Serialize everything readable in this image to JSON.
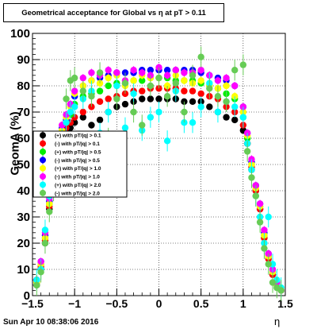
{
  "title": "Geometrical acceptance for Global vs  η at pT > 0.11",
  "datestamp": "Sun Apr 10 08:38:06 2016",
  "chart_data": {
    "type": "scatter",
    "title": "Geometrical acceptance for Global vs  η at pT > 0.11",
    "xlabel": "η",
    "ylabel": "GeomA (%)",
    "xlim": [
      -1.5,
      1.5
    ],
    "ylim": [
      0,
      100
    ],
    "xticks": [
      "−1.5",
      "−1",
      "−0.5",
      "0",
      "0.5",
      "1",
      "1.5"
    ],
    "xtick_values": [
      -1.5,
      -1,
      -0.5,
      0,
      0.5,
      1,
      1.5
    ],
    "yticks": [
      "0",
      "10",
      "20",
      "30",
      "40",
      "50",
      "60",
      "70",
      "80",
      "90",
      "100"
    ],
    "ytick_values": [
      0,
      10,
      20,
      30,
      40,
      50,
      60,
      70,
      80,
      90,
      100
    ],
    "grid": true,
    "legend_position": "left-middle",
    "series": [
      {
        "name": "(+) with pT/|q| > 0.1",
        "color": "#000000",
        "err": 1.0,
        "x": [
          -1.45,
          -1.4,
          -1.35,
          -1.3,
          -1.25,
          -1.2,
          -1.15,
          -1.1,
          -1.05,
          -1.0,
          -0.9,
          -0.8,
          -0.7,
          -0.6,
          -0.5,
          -0.4,
          -0.3,
          -0.2,
          -0.1,
          0.0,
          0.1,
          0.2,
          0.3,
          0.4,
          0.5,
          0.6,
          0.7,
          0.8,
          0.9,
          1.0,
          1.05,
          1.1,
          1.15,
          1.2,
          1.25,
          1.3,
          1.35,
          1.4,
          1.45
        ],
        "y": [
          4,
          10,
          20,
          33,
          45,
          55,
          60,
          63,
          64,
          66,
          68,
          65,
          67,
          70,
          72,
          73,
          74,
          75,
          75,
          75,
          75,
          75,
          74,
          74,
          74,
          72,
          70,
          68,
          67,
          63,
          58,
          48,
          40,
          33,
          22,
          15,
          8,
          4,
          2
        ]
      },
      {
        "name": "(-) with pT/|q| > 0.1",
        "color": "#ff0000",
        "err": 1.0,
        "x": [
          -1.45,
          -1.4,
          -1.35,
          -1.3,
          -1.25,
          -1.2,
          -1.15,
          -1.1,
          -1.05,
          -1.0,
          -0.9,
          -0.8,
          -0.7,
          -0.6,
          -0.5,
          -0.4,
          -0.3,
          -0.2,
          -0.1,
          0.0,
          0.1,
          0.2,
          0.3,
          0.4,
          0.5,
          0.6,
          0.7,
          0.8,
          0.9,
          1.0,
          1.05,
          1.1,
          1.15,
          1.2,
          1.25,
          1.3,
          1.35,
          1.4,
          1.45
        ],
        "y": [
          5,
          11,
          21,
          34,
          46,
          56,
          61,
          64,
          66,
          68,
          70,
          72,
          74,
          75,
          76,
          77,
          78,
          78,
          79,
          79,
          79,
          79,
          78,
          78,
          77,
          76,
          75,
          72,
          70,
          65,
          58,
          49,
          40,
          33,
          22,
          14,
          8,
          4,
          2
        ]
      },
      {
        "name": "(+) with pT/|q| > 0.5",
        "color": "#00ee00",
        "err": 1.0,
        "x": [
          -1.45,
          -1.4,
          -1.35,
          -1.3,
          -1.25,
          -1.2,
          -1.15,
          -1.1,
          -1.05,
          -1.0,
          -0.9,
          -0.8,
          -0.7,
          -0.6,
          -0.5,
          -0.4,
          -0.3,
          -0.2,
          -0.1,
          0.0,
          0.1,
          0.2,
          0.3,
          0.4,
          0.5,
          0.6,
          0.7,
          0.8,
          0.9,
          1.0,
          1.05,
          1.1,
          1.15,
          1.2,
          1.25,
          1.3,
          1.35,
          1.4,
          1.45
        ],
        "y": [
          5,
          12,
          22,
          35,
          48,
          58,
          62,
          66,
          69,
          73,
          76,
          77,
          78,
          80,
          81,
          81,
          82,
          82,
          83,
          83,
          83,
          82,
          82,
          82,
          81,
          80,
          79,
          77,
          75,
          68,
          60,
          50,
          42,
          34,
          23,
          15,
          9,
          5,
          2
        ]
      },
      {
        "name": "(-) with pT/|q| > 0.5",
        "color": "#0000ff",
        "err": 1.0,
        "x": [
          -1.45,
          -1.4,
          -1.35,
          -1.3,
          -1.25,
          -1.2,
          -1.15,
          -1.1,
          -1.05,
          -1.0,
          -0.9,
          -0.8,
          -0.7,
          -0.6,
          -0.5,
          -0.4,
          -0.3,
          -0.2,
          -0.1,
          0.0,
          0.1,
          0.2,
          0.3,
          0.4,
          0.5,
          0.6,
          0.7,
          0.8,
          0.9,
          1.0,
          1.05,
          1.1,
          1.15,
          1.2,
          1.25,
          1.3,
          1.35,
          1.4,
          1.45
        ],
        "y": [
          6,
          13,
          23,
          36,
          49,
          59,
          64,
          67,
          70,
          76,
          80,
          82,
          83,
          84,
          85,
          85,
          85,
          86,
          86,
          86,
          86,
          86,
          86,
          86,
          85,
          84,
          83,
          82,
          80,
          72,
          62,
          51,
          42,
          35,
          24,
          16,
          9,
          5,
          2
        ]
      },
      {
        "name": "(+) with pT/|q| > 1.0",
        "color": "#ffff00",
        "err": 1.5,
        "x": [
          -1.45,
          -1.4,
          -1.35,
          -1.3,
          -1.25,
          -1.2,
          -1.15,
          -1.1,
          -1.05,
          -1.0,
          -0.9,
          -0.8,
          -0.7,
          -0.6,
          -0.5,
          -0.4,
          -0.3,
          -0.2,
          -0.1,
          0.0,
          0.1,
          0.2,
          0.3,
          0.4,
          0.5,
          0.6,
          0.7,
          0.8,
          0.9,
          1.0,
          1.05,
          1.1,
          1.15,
          1.2,
          1.25,
          1.3,
          1.35,
          1.4,
          1.45
        ],
        "y": [
          5,
          12,
          22,
          35,
          47,
          57,
          63,
          68,
          72,
          77,
          80,
          82,
          81,
          83,
          84,
          80,
          82,
          84,
          83,
          83,
          80,
          84,
          82,
          81,
          82,
          80,
          79,
          80,
          76,
          70,
          61,
          50,
          41,
          34,
          23,
          15,
          9,
          4,
          2
        ]
      },
      {
        "name": "(-) with pT/|q| > 1.0",
        "color": "#ff00ff",
        "err": 1.5,
        "x": [
          -1.45,
          -1.4,
          -1.35,
          -1.3,
          -1.25,
          -1.2,
          -1.15,
          -1.1,
          -1.05,
          -1.0,
          -0.9,
          -0.8,
          -0.7,
          -0.6,
          -0.5,
          -0.4,
          -0.3,
          -0.2,
          -0.1,
          0.0,
          0.1,
          0.2,
          0.3,
          0.4,
          0.5,
          0.6,
          0.7,
          0.8,
          0.9,
          1.0,
          1.05,
          1.1,
          1.15,
          1.2,
          1.25,
          1.3,
          1.35,
          1.4,
          1.45
        ],
        "y": [
          6,
          13,
          24,
          37,
          50,
          60,
          65,
          69,
          73,
          78,
          83,
          85,
          84,
          86,
          85,
          82,
          86,
          85,
          84,
          87,
          84,
          86,
          85,
          85,
          86,
          84,
          82,
          83,
          80,
          72,
          62,
          52,
          42,
          35,
          25,
          16,
          10,
          5,
          2
        ]
      },
      {
        "name": "(+) with pT/|q| > 2.0",
        "color": "#00ffff",
        "err": 4.0,
        "x": [
          -1.45,
          -1.4,
          -1.35,
          -1.3,
          -1.25,
          -1.2,
          -1.15,
          -1.1,
          -1.05,
          -1.0,
          -0.9,
          -0.8,
          -0.7,
          -0.6,
          -0.5,
          -0.4,
          -0.3,
          -0.2,
          -0.1,
          0.0,
          0.1,
          0.2,
          0.3,
          0.4,
          0.5,
          0.6,
          0.7,
          0.8,
          0.9,
          1.0,
          1.05,
          1.1,
          1.15,
          1.2,
          1.25,
          1.3,
          1.35,
          1.4,
          1.45
        ],
        "y": [
          6,
          10,
          25,
          38,
          45,
          55,
          60,
          66,
          70,
          72,
          75,
          78,
          62,
          70,
          80,
          64,
          77,
          63,
          68,
          70,
          59,
          78,
          66,
          66,
          72,
          81,
          70,
          74,
          72,
          68,
          58,
          48,
          38,
          30,
          20,
          30,
          12,
          6,
          3
        ]
      },
      {
        "name": "(-) with pT/|q| > 2.0",
        "color": "#66cc55",
        "err": 4.0,
        "x": [
          -1.45,
          -1.4,
          -1.35,
          -1.3,
          -1.25,
          -1.2,
          -1.15,
          -1.1,
          -1.05,
          -1.0,
          -0.9,
          -0.8,
          -0.7,
          -0.6,
          -0.5,
          -0.4,
          -0.3,
          -0.2,
          -0.1,
          0.0,
          0.1,
          0.2,
          0.3,
          0.4,
          0.5,
          0.6,
          0.7,
          0.8,
          0.9,
          1.0,
          1.05,
          1.1,
          1.15,
          1.2,
          1.25,
          1.3,
          1.35,
          1.4,
          1.45
        ],
        "y": [
          4,
          9,
          20,
          32,
          40,
          50,
          57,
          75,
          82,
          83,
          78,
          76,
          85,
          60,
          75,
          81,
          70,
          65,
          80,
          83,
          76,
          81,
          70,
          84,
          91,
          79,
          76,
          74,
          86,
          88,
          55,
          45,
          38,
          28,
          18,
          12,
          5,
          3,
          2
        ]
      }
    ]
  }
}
